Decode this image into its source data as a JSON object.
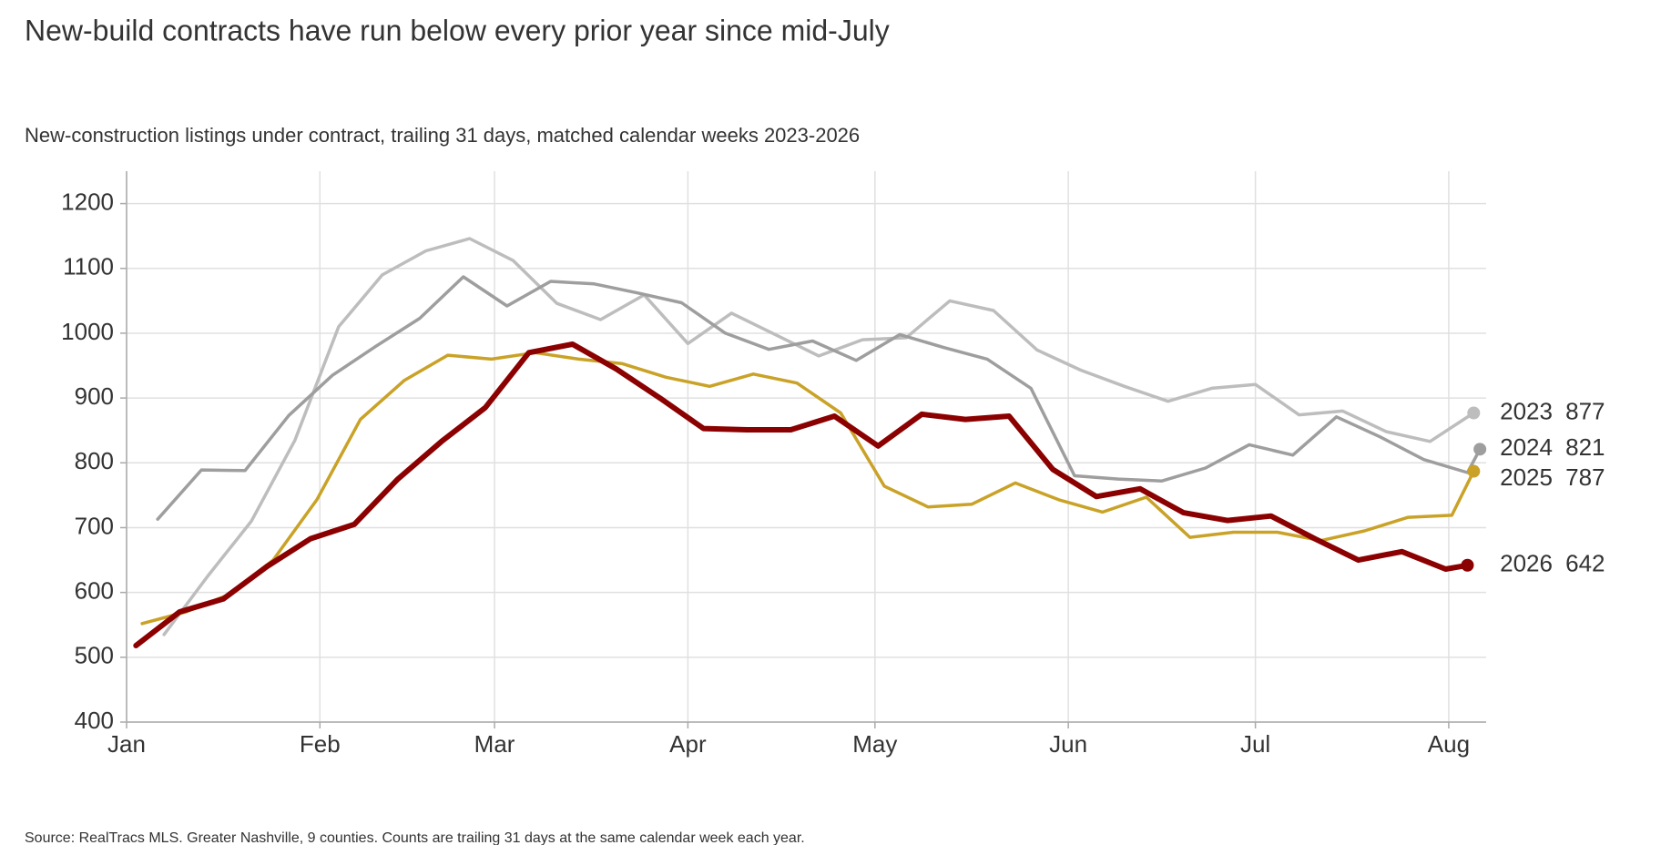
{
  "chart_data": {
    "type": "line",
    "title": "New-build contracts have run below every prior year since mid-July",
    "subtitle": "New-construction listings under contract, trailing 31 days, matched calendar weeks 2023-2026",
    "source": "Source: RealTracs MLS. Greater Nashville, 9 counties. Counts are trailing 31 days at the same calendar week each year.",
    "xlim": [
      0,
      218
    ],
    "xticks": [
      {
        "value": 0,
        "label": "Jan"
      },
      {
        "value": 31,
        "label": "Feb"
      },
      {
        "value": 59,
        "label": "Mar"
      },
      {
        "value": 90,
        "label": "Apr"
      },
      {
        "value": 120,
        "label": "May"
      },
      {
        "value": 151,
        "label": "Jun"
      },
      {
        "value": 181,
        "label": "Jul"
      },
      {
        "value": 212,
        "label": "Aug"
      }
    ],
    "ylim": [
      400,
      1250
    ],
    "yticks": [
      400,
      500,
      600,
      700,
      800,
      900,
      1000,
      1100,
      1200
    ],
    "grid": true,
    "series": [
      {
        "name": "2023",
        "color": "#bdbdbd",
        "label_color": "#555555",
        "x": [
          6,
          13,
          20,
          27,
          34,
          41,
          48,
          55,
          62,
          69,
          76,
          83,
          90,
          97,
          104,
          111,
          118,
          125,
          132,
          139,
          146,
          153,
          160,
          167,
          174,
          181,
          188,
          195,
          202,
          209,
          216
        ],
        "values": [
          535,
          625,
          710,
          835,
          1010,
          1090,
          1127,
          1146,
          1112,
          1046,
          1021,
          1059,
          984,
          1031,
          998,
          965,
          990,
          993,
          1050,
          1035,
          974,
          943,
          918,
          895,
          915,
          921,
          874,
          880,
          848,
          833,
          877
        ]
      },
      {
        "name": "2024",
        "color": "#9e9e9e",
        "label_color": "#8c8c8c",
        "x": [
          5,
          12,
          19,
          26,
          33,
          40,
          47,
          54,
          61,
          68,
          75,
          82,
          89,
          96,
          103,
          110,
          117,
          124,
          131,
          138,
          145,
          152,
          159,
          166,
          173,
          180,
          187,
          194,
          201,
          208,
          215,
          217
        ],
        "values": [
          713,
          789,
          788,
          873,
          935,
          980,
          1023,
          1087,
          1042,
          1080,
          1076,
          1062,
          1047,
          1000,
          975,
          988,
          958,
          998,
          978,
          960,
          915,
          780,
          775,
          772,
          792,
          828,
          812,
          871,
          840,
          805,
          785,
          821
        ]
      },
      {
        "name": "2025",
        "color": "#c9a227",
        "label_color": "#9a7a10",
        "x": [
          2.5,
          9.5,
          16.5,
          23.5,
          30.5,
          37.5,
          44.5,
          51.5,
          58.5,
          65.5,
          72.5,
          79.5,
          86.5,
          93.5,
          100.5,
          107.5,
          114.5,
          121.5,
          128.5,
          135.5,
          142.5,
          149.5,
          156.5,
          163.5,
          170.5,
          177.5,
          184.5,
          191.5,
          198.5,
          205.5,
          212.5,
          216
        ],
        "values": [
          552,
          570,
          597,
          650,
          743,
          867,
          927,
          966,
          960,
          970,
          960,
          953,
          932,
          918,
          937,
          923,
          877,
          764,
          732,
          736,
          769,
          743,
          724,
          747,
          685,
          693,
          693,
          680,
          695,
          716,
          719,
          787
        ]
      },
      {
        "name": "2026",
        "color": "#8b0000",
        "label_color": "#8b0000",
        "x": [
          1.5,
          8.5,
          15.5,
          22.5,
          29.5,
          36.5,
          43.5,
          50.5,
          57.5,
          64.5,
          71.5,
          78.5,
          85.5,
          92.5,
          99.5,
          106.5,
          113.5,
          120.5,
          127.5,
          134.5,
          141.5,
          148.5,
          155.5,
          162.5,
          169.5,
          176.5,
          183.5,
          190.5,
          197.5,
          204.5,
          211.5,
          215
        ],
        "values": [
          518,
          570,
          590,
          640,
          683,
          705,
          775,
          833,
          885,
          970,
          983,
          945,
          900,
          853,
          851,
          851,
          872,
          826,
          875,
          867,
          872,
          790,
          748,
          760,
          723,
          711,
          718,
          683,
          650,
          663,
          636,
          642
        ]
      }
    ]
  }
}
